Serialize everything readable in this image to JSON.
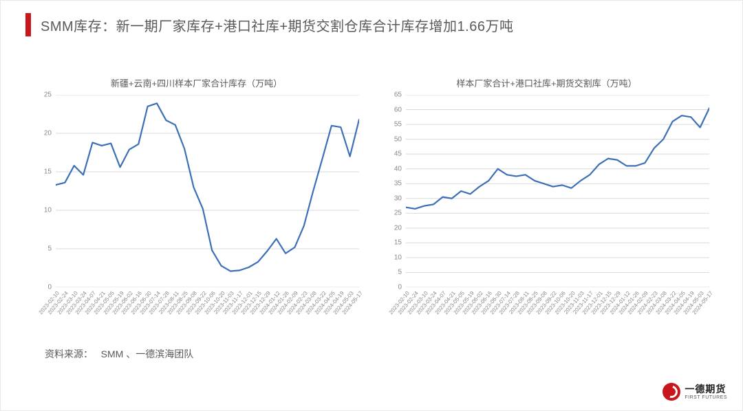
{
  "colors": {
    "accent": "#c8161d",
    "title_text": "#595959",
    "line": "#3d6fb6",
    "grid": "#d9d9d9",
    "axis_text": "#888888",
    "background": "#ffffff"
  },
  "header": {
    "title": "SMM库存：新一期厂家库存+港口社库+期货交割仓库合计库存增加1.66万吨"
  },
  "x_labels": [
    "2023-02-10",
    "2023-02-24",
    "2023-03-10",
    "2023-03-24",
    "2023-04-07",
    "2023-04-21",
    "2023-05-05",
    "2023-05-19",
    "2023-06-02",
    "2023-06-16",
    "2023-06-30",
    "2023-07-14",
    "2023-07-28",
    "2023-08-11",
    "2023-08-25",
    "2023-09-08",
    "2023-09-22",
    "2023-10-06",
    "2023-10-20",
    "2023-11-03",
    "2023-11-17",
    "2023-12-01",
    "2023-12-15",
    "2023-12-29",
    "2024-01-12",
    "2024-01-26",
    "2024-02-09",
    "2024-02-23",
    "2024-03-08",
    "2024-03-22",
    "2024-04-05",
    "2024-04-19",
    "2024-05-03",
    "2024-05-17"
  ],
  "chart_left": {
    "type": "line",
    "title": "新疆+云南+四川样本厂家合计库存（万吨）",
    "ylim": [
      0,
      25
    ],
    "ytick_step": 5,
    "line_color": "#3d6fb6",
    "line_width": 2.2,
    "grid_color": "#d9d9d9",
    "title_fontsize": 13,
    "tick_fontsize": 10,
    "values": [
      13.3,
      13.6,
      15.8,
      14.6,
      18.8,
      18.4,
      18.7,
      15.6,
      17.9,
      18.6,
      23.5,
      23.9,
      21.7,
      21.1,
      18.0,
      13.0,
      10.2,
      4.8,
      2.8,
      2.1,
      2.2,
      2.6,
      3.3,
      4.7,
      6.3,
      4.4,
      5.2,
      8.0,
      12.5,
      16.7,
      21.0,
      20.8,
      17.0,
      21.8
    ]
  },
  "chart_right": {
    "type": "line",
    "title": "样本厂家合计+港口社库+期货交割库（万吨）",
    "ylim": [
      0,
      65
    ],
    "ytick_step": 5,
    "line_color": "#3d6fb6",
    "line_width": 2.2,
    "grid_color": "#d9d9d9",
    "title_fontsize": 13,
    "tick_fontsize": 10,
    "values": [
      27.0,
      26.5,
      27.5,
      28.0,
      30.5,
      30.0,
      32.5,
      31.5,
      34.0,
      36.0,
      40.0,
      38.0,
      37.5,
      38.0,
      36.0,
      35.0,
      34.0,
      34.5,
      33.5,
      36.0,
      38.0,
      41.5,
      43.5,
      43.0,
      41.0,
      41.0,
      42.0,
      47.0,
      50.0,
      56.0,
      58.0,
      57.5,
      54.0,
      60.5
    ]
  },
  "source": {
    "label": "资料来源：",
    "value": "SMM 、一德滨海团队"
  },
  "logo": {
    "cn": "一德期货",
    "en": "FIRST FUTURES",
    "color": "#c8161d"
  }
}
